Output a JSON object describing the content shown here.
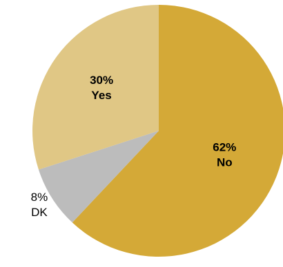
{
  "chart_data": {
    "type": "pie",
    "title": "",
    "slices": [
      {
        "label": "No",
        "value": 62,
        "percent_label": "62%",
        "color": "#d4a937",
        "label_position": "inside"
      },
      {
        "label": "DK",
        "value": 8,
        "percent_label": "8%",
        "color": "#bcbcbc",
        "label_position": "outside"
      },
      {
        "label": "Yes",
        "value": 30,
        "percent_label": "30%",
        "color": "#e0c785",
        "label_position": "inside"
      }
    ],
    "start_angle": "12 o'clock",
    "direction": "clockwise",
    "legend": "none"
  }
}
